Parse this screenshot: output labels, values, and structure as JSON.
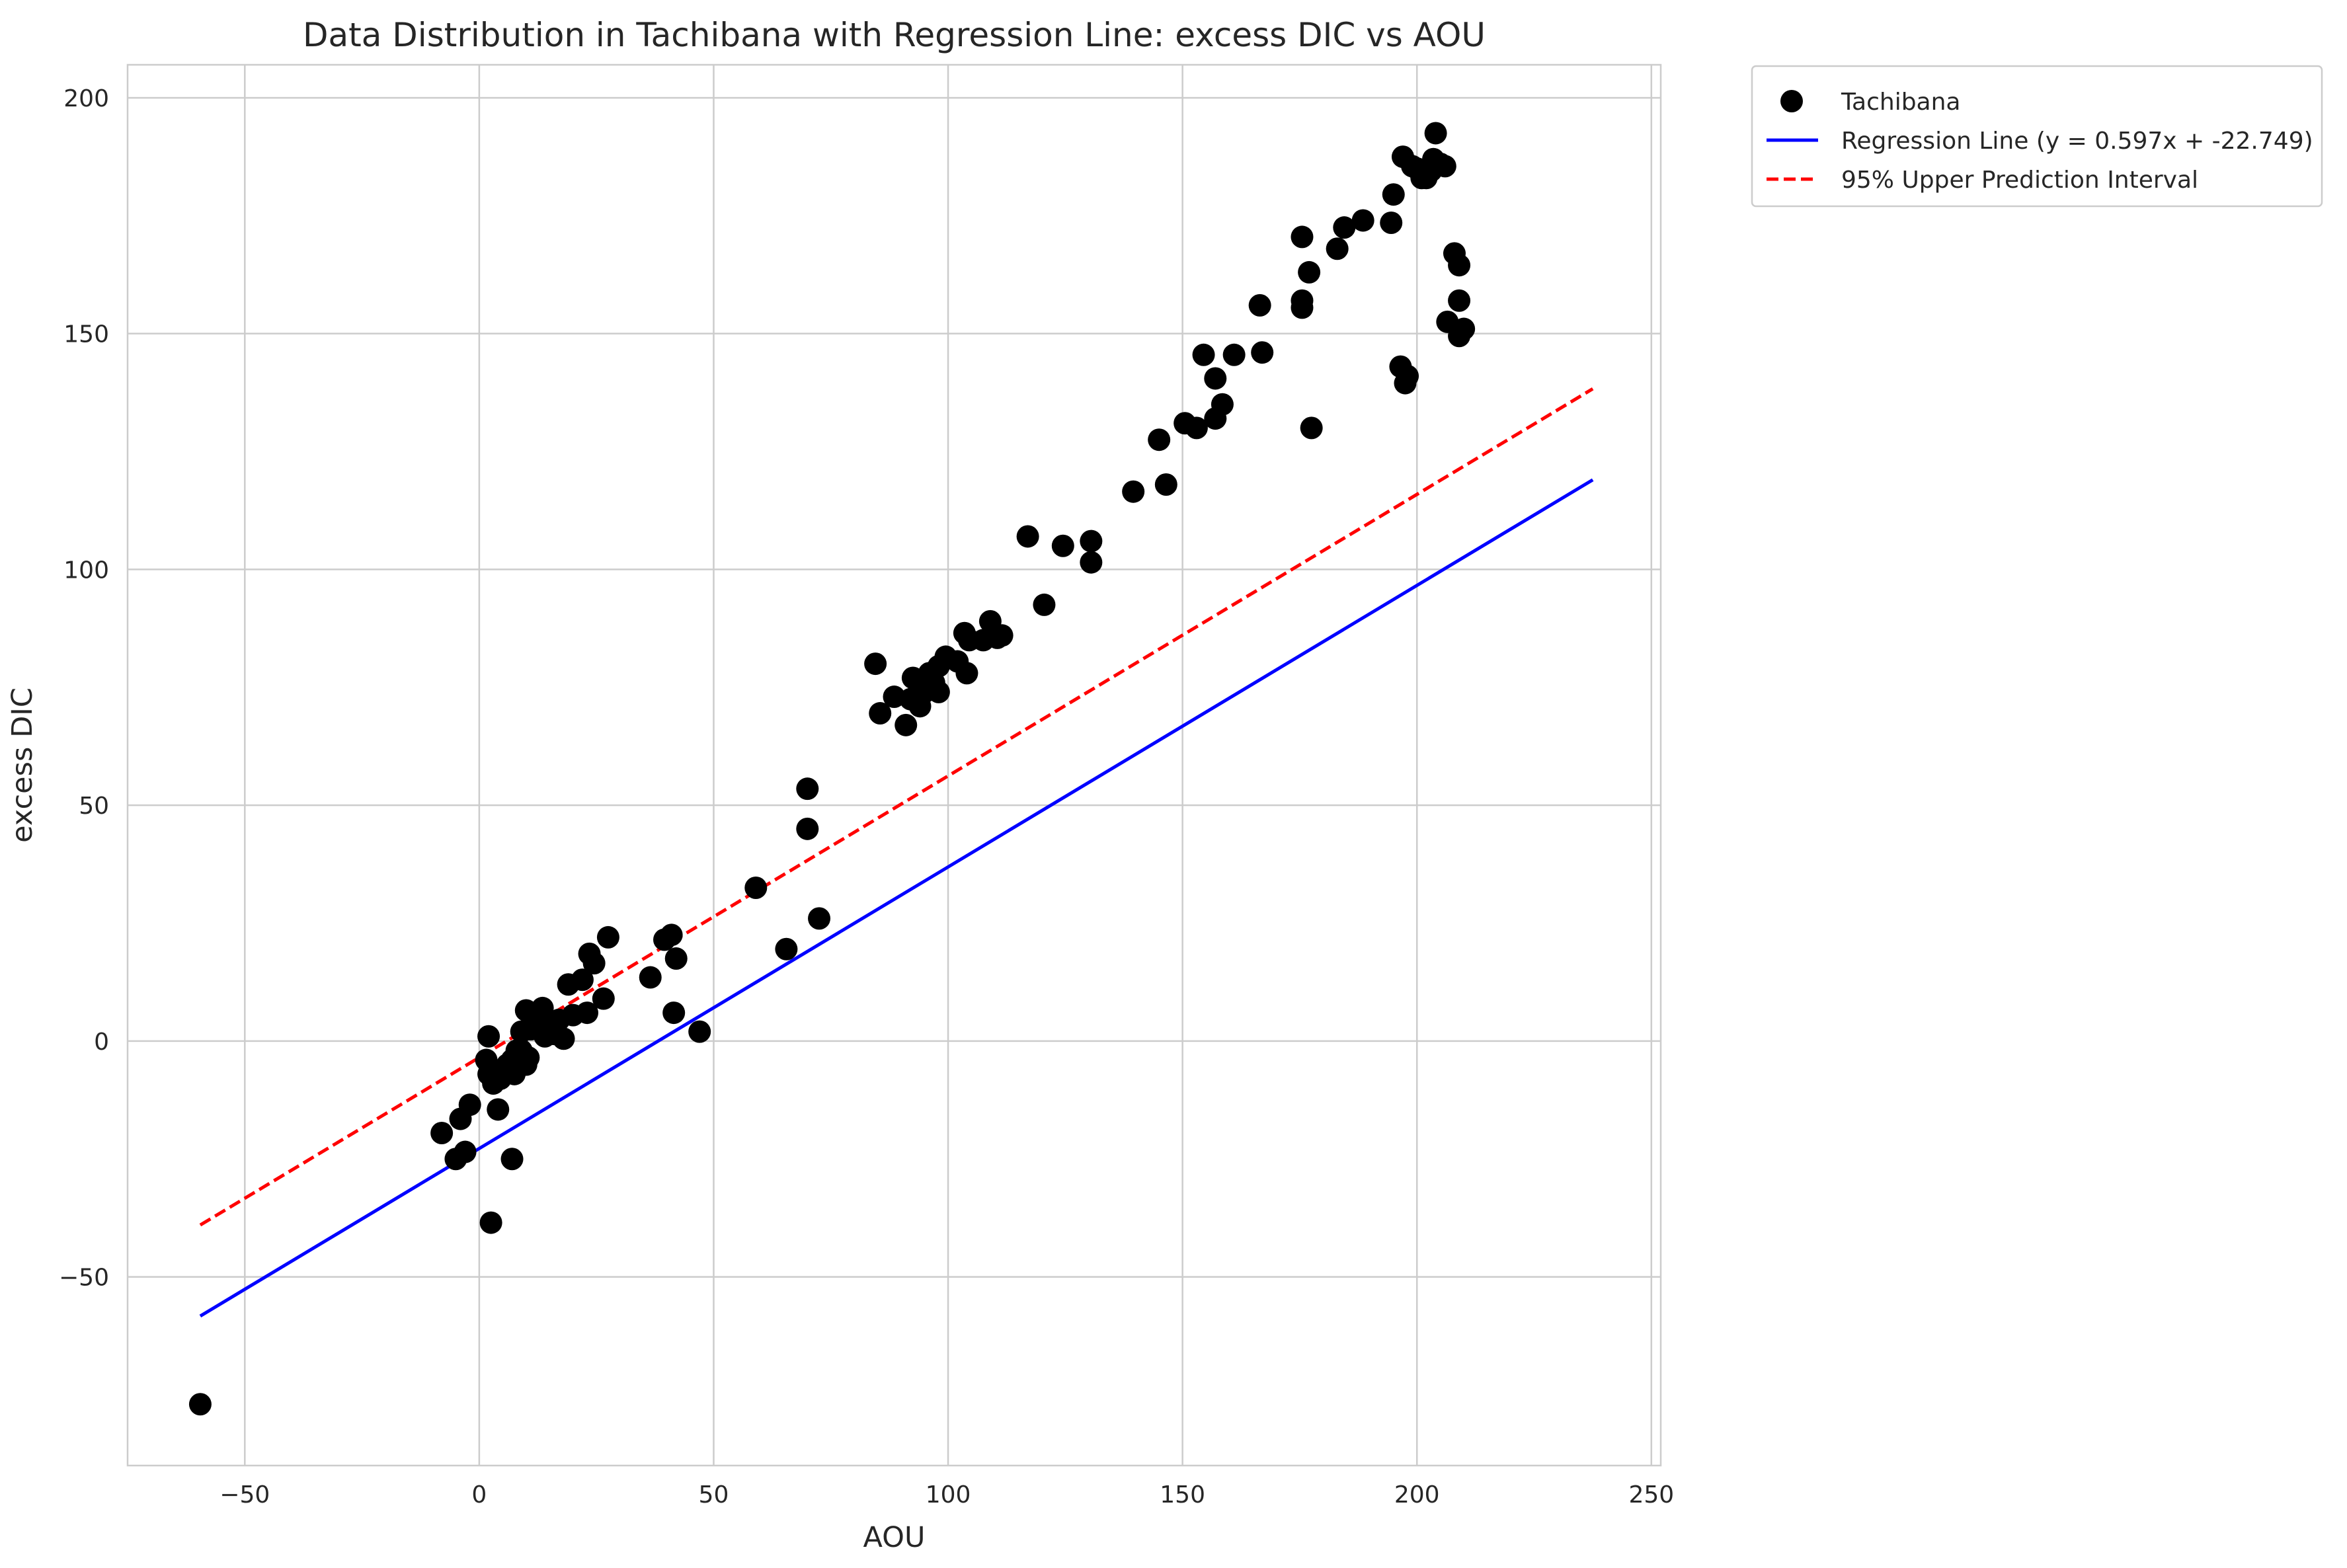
{
  "chart_data": {
    "type": "scatter",
    "title": "Data Distribution in Tachibana with Regression Line: excess DIC vs AOU",
    "xlabel": "AOU",
    "ylabel": "excess DIC",
    "xlim": [
      -75,
      252
    ],
    "ylim": [
      -90,
      207
    ],
    "xticks": [
      "-50",
      "0",
      "50",
      "100",
      "150",
      "200",
      "250"
    ],
    "xtick_values": [
      -50,
      0,
      50,
      100,
      150,
      200,
      250
    ],
    "yticks": [
      "-50",
      "0",
      "50",
      "100",
      "150",
      "200"
    ],
    "ytick_values": [
      -50,
      0,
      50,
      100,
      150,
      200
    ],
    "grid": true,
    "legend_position": "outside-top-right",
    "legend": [
      {
        "label": "Tachibana",
        "kind": "marker",
        "color": "#000000"
      },
      {
        "label": "Regression Line (y = 0.597x + -22.749)",
        "kind": "line",
        "color": "#0000ff"
      },
      {
        "label": "95% Upper Prediction Interval",
        "kind": "dashed",
        "color": "#ff0000"
      }
    ],
    "series": [
      {
        "name": "Tachibana",
        "kind": "scatter",
        "color": "#000000",
        "points": [
          [
            -59.5,
            -77
          ],
          [
            -8,
            -19.5
          ],
          [
            -5,
            -25
          ],
          [
            -4,
            -16.5
          ],
          [
            -3,
            -23.5
          ],
          [
            -2,
            -13.5
          ],
          [
            1.5,
            -4
          ],
          [
            2,
            1
          ],
          [
            2,
            -7
          ],
          [
            2.5,
            -38.5
          ],
          [
            3,
            -9
          ],
          [
            3.5,
            -6.5
          ],
          [
            4,
            -14.5
          ],
          [
            4.5,
            -8
          ],
          [
            5,
            -6
          ],
          [
            6,
            -5
          ],
          [
            7,
            -25
          ],
          [
            7,
            -4
          ],
          [
            7.5,
            -7
          ],
          [
            8,
            -2
          ],
          [
            9,
            -2
          ],
          [
            9,
            2
          ],
          [
            10,
            -5
          ],
          [
            10,
            6.5
          ],
          [
            10.5,
            -3.5
          ],
          [
            11,
            2.5
          ],
          [
            12,
            6
          ],
          [
            13,
            3.5
          ],
          [
            13.5,
            7
          ],
          [
            14,
            1
          ],
          [
            15,
            3
          ],
          [
            16,
            1.5
          ],
          [
            17,
            4.5
          ],
          [
            18,
            0.5
          ],
          [
            19,
            12
          ],
          [
            20,
            5.5
          ],
          [
            22,
            13
          ],
          [
            23,
            6
          ],
          [
            23.5,
            18.5
          ],
          [
            24.5,
            16.5
          ],
          [
            26.5,
            9
          ],
          [
            27.5,
            22
          ],
          [
            36.5,
            13.5
          ],
          [
            39.5,
            21.5
          ],
          [
            41,
            22.5
          ],
          [
            41.5,
            6
          ],
          [
            42,
            17.5
          ],
          [
            47,
            2
          ],
          [
            59,
            32.5
          ],
          [
            65.5,
            19.5
          ],
          [
            70,
            53.5
          ],
          [
            70,
            45
          ],
          [
            72.5,
            26
          ],
          [
            84.5,
            80
          ],
          [
            85.5,
            69.5
          ],
          [
            88.5,
            73
          ],
          [
            91,
            67
          ],
          [
            92,
            72.5
          ],
          [
            92.5,
            77
          ],
          [
            94,
            71
          ],
          [
            95,
            74
          ],
          [
            96,
            78
          ],
          [
            97,
            76
          ],
          [
            98,
            74
          ],
          [
            98,
            79.5
          ],
          [
            99.5,
            81.5
          ],
          [
            102,
            80.5
          ],
          [
            103.5,
            86.5
          ],
          [
            104,
            78
          ],
          [
            104.5,
            85
          ],
          [
            107.5,
            85
          ],
          [
            109,
            89
          ],
          [
            110.5,
            85.5
          ],
          [
            111.5,
            86
          ],
          [
            117,
            107
          ],
          [
            120.5,
            92.5
          ],
          [
            124.5,
            105
          ],
          [
            130.5,
            106
          ],
          [
            130.5,
            101.5
          ],
          [
            139.5,
            116.5
          ],
          [
            145,
            127.5
          ],
          [
            146.5,
            118
          ],
          [
            150.5,
            131
          ],
          [
            153,
            130
          ],
          [
            154.5,
            145.5
          ],
          [
            157,
            140.5
          ],
          [
            157,
            132
          ],
          [
            158.5,
            135
          ],
          [
            161,
            145.5
          ],
          [
            166.5,
            156
          ],
          [
            167,
            146
          ],
          [
            175.5,
            170.5
          ],
          [
            175.5,
            155.5
          ],
          [
            175.5,
            157
          ],
          [
            177,
            163
          ],
          [
            177.5,
            130
          ],
          [
            183,
            168
          ],
          [
            184.5,
            172.5
          ],
          [
            188.5,
            174
          ],
          [
            194.5,
            173.5
          ],
          [
            195,
            179.5
          ],
          [
            196.5,
            143
          ],
          [
            197,
            187.5
          ],
          [
            197.5,
            139.5
          ],
          [
            198,
            141
          ],
          [
            199,
            185.5
          ],
          [
            200,
            185
          ],
          [
            201,
            183
          ],
          [
            202,
            183
          ],
          [
            203,
            184.5
          ],
          [
            203.5,
            187
          ],
          [
            204,
            192.5
          ],
          [
            205,
            186
          ],
          [
            206,
            185.5
          ],
          [
            206.5,
            152.5
          ],
          [
            208,
            167
          ],
          [
            209,
            149.5
          ],
          [
            209,
            157
          ],
          [
            209,
            164.5
          ],
          [
            210,
            151
          ]
        ]
      },
      {
        "name": "Regression Line (y = 0.597x + -22.749)",
        "kind": "line",
        "color": "#0000ff",
        "x": [
          -59.5,
          237.5
        ],
        "y": [
          -58.3,
          119.0
        ]
      },
      {
        "name": "95% Upper Prediction Interval",
        "kind": "dashed",
        "color": "#ff0000",
        "x": [
          -59.5,
          237.5
        ],
        "y": [
          -39.0,
          138.3
        ]
      }
    ]
  }
}
